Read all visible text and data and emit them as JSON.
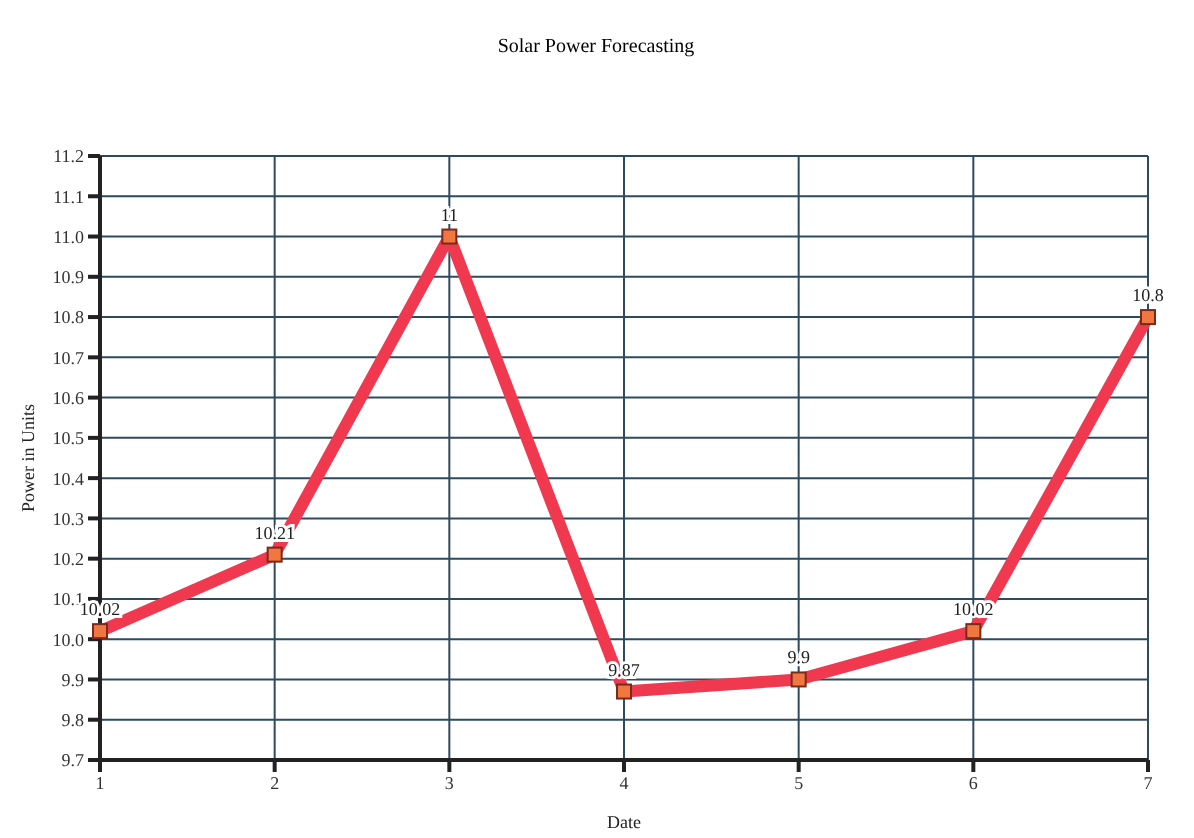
{
  "chart_data": {
    "type": "line",
    "title": "Solar Power Forecasting",
    "xlabel": "Date",
    "ylabel": "Power in Units",
    "categories": [
      "1",
      "2",
      "3",
      "4",
      "5",
      "6",
      "7"
    ],
    "series": [
      {
        "color": "#f0384f",
        "values": [
          10.02,
          10.21,
          11,
          9.87,
          9.9,
          10.02,
          10.8
        ]
      }
    ],
    "data_labels": true,
    "marker": "square",
    "grid": true,
    "ylim": [
      9.7,
      11.2
    ],
    "yticks": [
      9.7,
      9.8,
      9.9,
      {
        "value": 10,
        "label": "10.0"
      },
      10.1,
      10.2,
      10.3,
      10.4,
      10.5,
      10.6,
      10.7,
      10.8,
      10.9,
      {
        "value": 11,
        "label": "11.0"
      },
      11.1,
      11.2
    ]
  }
}
